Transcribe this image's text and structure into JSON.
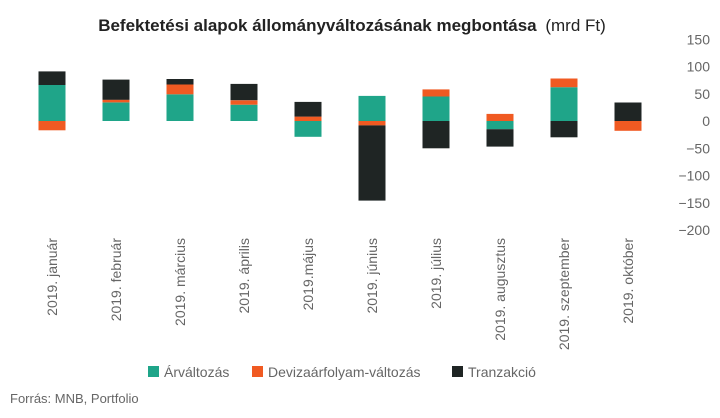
{
  "chart_data": {
    "type": "bar",
    "stacked": true,
    "title": "Befektetési alapok állományváltozásának megbontása",
    "title_unit": "(mrd Ft)",
    "categories": [
      "2019. január",
      "2019. február",
      "2019. március",
      "2019. április",
      "2019.május",
      "2019. június",
      "2019. július",
      "2019. augusztus",
      "2019. szeptember",
      "2019. október"
    ],
    "series": [
      {
        "name": "Árváltozás",
        "color": "#1fa589",
        "values": [
          66,
          34,
          49,
          30,
          -29,
          46,
          45,
          -15,
          62,
          0
        ]
      },
      {
        "name": "Devizaárfolyam-változás",
        "color": "#f05a22",
        "values": [
          -17,
          5,
          18,
          8,
          8,
          -8,
          13,
          13,
          16,
          -18
        ]
      },
      {
        "name": "Tranzakció",
        "color": "#1f2524",
        "values": [
          25,
          37,
          10,
          30,
          27,
          -138,
          -50,
          -32,
          -30,
          34
        ]
      }
    ],
    "yticks": [
      150,
      100,
      50,
      0,
      -50,
      -100,
      -150,
      -200
    ],
    "ylim": [
      -200,
      150
    ],
    "grid": false,
    "legend_position": "bottom",
    "source": "Forrás: MNB, Portfolio"
  }
}
